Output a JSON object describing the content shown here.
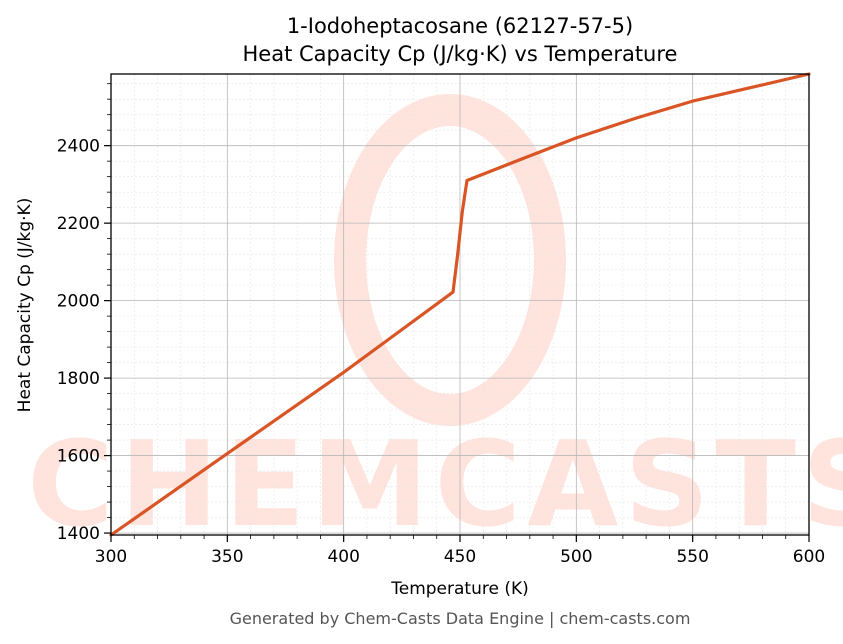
{
  "chart_data": {
    "type": "line",
    "title": "1-Iodoheptacosane (62127-57-5)",
    "subtitle": "Heat Capacity Cp (J/kg·K) vs Temperature",
    "xlabel": "Temperature (K)",
    "ylabel": "Heat Capacity Cp (J/kg·K)",
    "xlim": [
      300,
      600
    ],
    "ylim": [
      1395,
      2585
    ],
    "xticks": [
      300,
      350,
      400,
      450,
      500,
      550,
      600
    ],
    "yticks": [
      1400,
      1600,
      1800,
      2000,
      2200,
      2400
    ],
    "grid": true,
    "line_color": "#d95525",
    "series": [
      {
        "x": [
          300,
          350,
          400,
          447,
          449,
          451,
          453,
          475,
          500,
          525,
          550,
          575,
          600
        ],
        "y": [
          1395,
          1605,
          1815,
          2022,
          2120,
          2230,
          2310,
          2362,
          2420,
          2470,
          2515,
          2550,
          2585
        ]
      }
    ],
    "watermark": "CHEMCASTS"
  },
  "footer": "Generated by Chem-Casts Data Engine | chem-casts.com"
}
